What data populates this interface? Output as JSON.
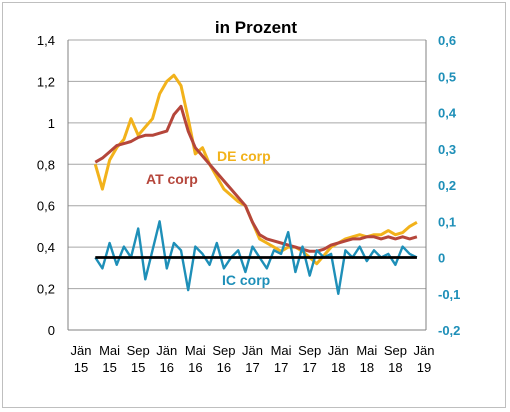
{
  "chart_data": {
    "type": "line",
    "title": "in Prozent",
    "y_left": {
      "range": [
        0,
        1.4
      ],
      "ticks": [
        "0",
        "0,2",
        "0,4",
        "0,6",
        "0,8",
        "1",
        "1,2",
        "1,4"
      ]
    },
    "y_right": {
      "range": [
        -0.2,
        0.6
      ],
      "ticks": [
        "-0,2",
        "-0,1",
        "0",
        "0,1",
        "0,2",
        "0,3",
        "0,4",
        "0,5",
        "0,6"
      ]
    },
    "x_ticks": [
      {
        "month": "Jän",
        "year": "15"
      },
      {
        "month": "Mai",
        "year": "15"
      },
      {
        "month": "Sep",
        "year": "15"
      },
      {
        "month": "Jän",
        "year": "16"
      },
      {
        "month": "Mai",
        "year": "16"
      },
      {
        "month": "Sep",
        "year": "16"
      },
      {
        "month": "Jän",
        "year": "17"
      },
      {
        "month": "Mai",
        "year": "17"
      },
      {
        "month": "Sep",
        "year": "17"
      },
      {
        "month": "Jän",
        "year": "18"
      },
      {
        "month": "Mai",
        "year": "18"
      },
      {
        "month": "Sep",
        "year": "18"
      },
      {
        "month": "Jän",
        "year": "19"
      }
    ],
    "grid": true,
    "series": [
      {
        "name": "DE corp",
        "axis": "left",
        "color": "#f2b21b",
        "x": [
          "2015-03",
          "2015-04",
          "2015-05",
          "2015-06",
          "2015-07",
          "2015-08",
          "2015-09",
          "2015-10",
          "2015-11",
          "2015-12",
          "2016-01",
          "2016-02",
          "2016-03",
          "2016-04",
          "2016-05",
          "2016-06",
          "2016-07",
          "2016-08",
          "2016-09",
          "2016-10",
          "2016-11",
          "2016-12",
          "2017-01",
          "2017-02",
          "2017-03",
          "2017-04",
          "2017-05",
          "2017-06",
          "2017-07",
          "2017-08",
          "2017-09",
          "2017-10",
          "2017-11",
          "2017-12",
          "2018-01",
          "2018-02",
          "2018-03",
          "2018-04",
          "2018-05",
          "2018-06",
          "2018-07",
          "2018-08",
          "2018-09",
          "2018-10",
          "2018-11",
          "2018-12"
        ],
        "values": [
          0.8,
          0.68,
          0.82,
          0.88,
          0.92,
          1.02,
          0.94,
          0.98,
          1.02,
          1.14,
          1.2,
          1.23,
          1.18,
          1.02,
          0.85,
          0.88,
          0.8,
          0.74,
          0.68,
          0.65,
          0.62,
          0.6,
          0.52,
          0.44,
          0.42,
          0.4,
          0.38,
          0.4,
          0.4,
          0.38,
          0.35,
          0.32,
          0.36,
          0.4,
          0.42,
          0.44,
          0.45,
          0.46,
          0.45,
          0.46,
          0.46,
          0.48,
          0.46,
          0.47,
          0.5,
          0.52
        ]
      },
      {
        "name": "AT corp",
        "axis": "left",
        "color": "#b5463b",
        "x": [
          "2015-03",
          "2015-04",
          "2015-05",
          "2015-06",
          "2015-07",
          "2015-08",
          "2015-09",
          "2015-10",
          "2015-11",
          "2015-12",
          "2016-01",
          "2016-02",
          "2016-03",
          "2016-04",
          "2016-05",
          "2016-06",
          "2016-07",
          "2016-08",
          "2016-09",
          "2016-10",
          "2016-11",
          "2016-12",
          "2017-01",
          "2017-02",
          "2017-03",
          "2017-04",
          "2017-05",
          "2017-06",
          "2017-07",
          "2017-08",
          "2017-09",
          "2017-10",
          "2017-11",
          "2017-12",
          "2018-01",
          "2018-02",
          "2018-03",
          "2018-04",
          "2018-05",
          "2018-06",
          "2018-07",
          "2018-08",
          "2018-09",
          "2018-10",
          "2018-11",
          "2018-12"
        ],
        "values": [
          0.81,
          0.83,
          0.86,
          0.89,
          0.9,
          0.91,
          0.93,
          0.94,
          0.94,
          0.95,
          0.96,
          1.04,
          1.08,
          0.96,
          0.88,
          0.84,
          0.8,
          0.76,
          0.72,
          0.68,
          0.64,
          0.6,
          0.52,
          0.46,
          0.44,
          0.43,
          0.42,
          0.41,
          0.4,
          0.39,
          0.38,
          0.38,
          0.39,
          0.41,
          0.42,
          0.43,
          0.44,
          0.44,
          0.45,
          0.45,
          0.44,
          0.45,
          0.44,
          0.45,
          0.44,
          0.45
        ]
      },
      {
        "name": "IC corp",
        "axis": "right",
        "color": "#1e8fb8",
        "x": [
          "2015-03",
          "2015-04",
          "2015-05",
          "2015-06",
          "2015-07",
          "2015-08",
          "2015-09",
          "2015-10",
          "2015-11",
          "2015-12",
          "2016-01",
          "2016-02",
          "2016-03",
          "2016-04",
          "2016-05",
          "2016-06",
          "2016-07",
          "2016-08",
          "2016-09",
          "2016-10",
          "2016-11",
          "2016-12",
          "2017-01",
          "2017-02",
          "2017-03",
          "2017-04",
          "2017-05",
          "2017-06",
          "2017-07",
          "2017-08",
          "2017-09",
          "2017-10",
          "2017-11",
          "2017-12",
          "2018-01",
          "2018-02",
          "2018-03",
          "2018-04",
          "2018-05",
          "2018-06",
          "2018-07",
          "2018-08",
          "2018-09",
          "2018-10",
          "2018-11",
          "2018-12"
        ],
        "values": [
          0.0,
          -0.03,
          0.04,
          -0.02,
          0.03,
          0.0,
          0.08,
          -0.06,
          0.02,
          0.1,
          -0.03,
          0.04,
          0.02,
          -0.09,
          0.03,
          0.01,
          -0.02,
          0.04,
          -0.03,
          0.0,
          0.02,
          -0.04,
          0.03,
          0.0,
          -0.03,
          0.02,
          0.01,
          0.07,
          -0.04,
          0.03,
          -0.05,
          0.02,
          0.0,
          0.01,
          -0.1,
          0.02,
          0.0,
          0.03,
          -0.01,
          0.02,
          0.0,
          0.01,
          -0.02,
          0.03,
          0.01,
          0.0
        ]
      },
      {
        "name": "",
        "axis": "right",
        "color": "#000000",
        "x": [
          "2015-03",
          "2018-12"
        ],
        "values": [
          0,
          0
        ]
      }
    ],
    "annotations": [
      "DE corp",
      "AT corp",
      "IC corp"
    ]
  }
}
